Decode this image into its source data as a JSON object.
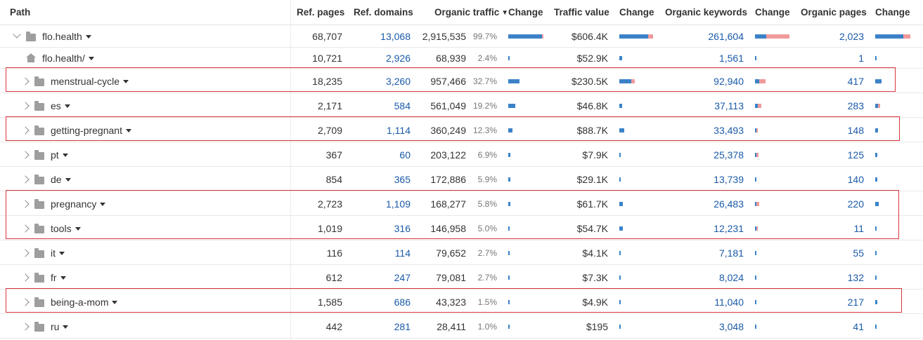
{
  "headers": {
    "path": "Path",
    "ref_pages": "Ref. pages",
    "ref_domains": "Ref. domains",
    "organic_traffic": "Organic traffic",
    "traffic_change": "Change",
    "traffic_value": "Traffic value",
    "value_change": "Change",
    "organic_keywords": "Organic keywords",
    "keywords_change": "Change",
    "organic_pages": "Organic pages",
    "pages_change": "Change"
  },
  "colors": {
    "bar_primary": "#3b82c8",
    "bar_secondary": "#f09a9a",
    "highlight": "#d9363e",
    "link": "#1a5aa8"
  },
  "rows": [
    {
      "path": "flo.health",
      "icon": "folder-icon",
      "expanded": true,
      "ref_pages": "68,707",
      "ref_domains": "13,068",
      "organic_traffic": "2,915,535",
      "traffic_pct": "99.7%",
      "traffic_value": "$606.4K",
      "organic_keywords": "261,604",
      "organic_pages": "2,023",
      "bars": {
        "traffic": [
          1.0,
          0.04
        ],
        "value": [
          0.85,
          0.15
        ],
        "keywords": [
          0.33,
          0.67
        ],
        "pages": [
          0.8,
          0.2
        ]
      }
    },
    {
      "path": "flo.health/",
      "icon": "home-icon",
      "ref_pages": "10,721",
      "ref_domains": "2,926",
      "organic_traffic": "68,939",
      "traffic_pct": "2.4%",
      "traffic_value": "$52.9K",
      "organic_keywords": "1,561",
      "organic_pages": "1",
      "bars": {
        "traffic": [
          0.04,
          0
        ],
        "value": [
          0.08,
          0
        ],
        "keywords": [
          0.04,
          0
        ],
        "pages": [
          0.04,
          0
        ]
      }
    },
    {
      "path": "menstrual-cycle",
      "icon": "folder-icon",
      "highlighted": true,
      "ref_pages": "18,235",
      "ref_domains": "3,260",
      "organic_traffic": "957,466",
      "traffic_pct": "32.7%",
      "traffic_value": "$230.5K",
      "organic_keywords": "92,940",
      "organic_pages": "417",
      "bars": {
        "traffic": [
          0.33,
          0
        ],
        "value": [
          0.36,
          0.1
        ],
        "keywords": [
          0.12,
          0.18
        ],
        "pages": [
          0.17,
          0
        ]
      }
    },
    {
      "path": "es",
      "icon": "folder-icon",
      "ref_pages": "2,171",
      "ref_domains": "584",
      "organic_traffic": "561,049",
      "traffic_pct": "19.2%",
      "traffic_value": "$46.8K",
      "organic_keywords": "37,113",
      "organic_pages": "283",
      "bars": {
        "traffic": [
          0.2,
          0
        ],
        "value": [
          0.08,
          0
        ],
        "keywords": [
          0.08,
          0.1
        ],
        "pages": [
          0.08,
          0.06
        ]
      }
    },
    {
      "path": "getting-pregnant",
      "icon": "folder-icon",
      "highlighted": true,
      "ref_pages": "2,709",
      "ref_domains": "1,114",
      "organic_traffic": "360,249",
      "traffic_pct": "12.3%",
      "traffic_value": "$88.7K",
      "organic_keywords": "33,493",
      "organic_pages": "148",
      "bars": {
        "traffic": [
          0.12,
          0
        ],
        "value": [
          0.14,
          0
        ],
        "keywords": [
          0.05,
          0.05
        ],
        "pages": [
          0.07,
          0
        ]
      }
    },
    {
      "path": "pt",
      "icon": "folder-icon",
      "ref_pages": "367",
      "ref_domains": "60",
      "organic_traffic": "203,122",
      "traffic_pct": "6.9%",
      "traffic_value": "$7.9K",
      "organic_keywords": "25,378",
      "organic_pages": "125",
      "bars": {
        "traffic": [
          0.07,
          0
        ],
        "value": [
          0.02,
          0
        ],
        "keywords": [
          0.05,
          0.06
        ],
        "pages": [
          0.06,
          0
        ]
      }
    },
    {
      "path": "de",
      "icon": "folder-icon",
      "ref_pages": "854",
      "ref_domains": "365",
      "organic_traffic": "172,886",
      "traffic_pct": "5.9%",
      "traffic_value": "$29.1K",
      "organic_keywords": "13,739",
      "organic_pages": "140",
      "bars": {
        "traffic": [
          0.06,
          0
        ],
        "value": [
          0.05,
          0
        ],
        "keywords": [
          0.04,
          0
        ],
        "pages": [
          0.06,
          0
        ]
      }
    },
    {
      "path": "pregnancy",
      "icon": "folder-icon",
      "highlighted": true,
      "ref_pages": "2,723",
      "ref_domains": "1,109",
      "organic_traffic": "168,277",
      "traffic_pct": "5.8%",
      "traffic_value": "$61.7K",
      "organic_keywords": "26,483",
      "organic_pages": "220",
      "bars": {
        "traffic": [
          0.06,
          0
        ],
        "value": [
          0.11,
          0
        ],
        "keywords": [
          0.04,
          0.08
        ],
        "pages": [
          0.09,
          0
        ]
      }
    },
    {
      "path": "tools",
      "icon": "folder-icon",
      "highlighted": true,
      "ref_pages": "1,019",
      "ref_domains": "316",
      "organic_traffic": "146,958",
      "traffic_pct": "5.0%",
      "traffic_value": "$54.7K",
      "organic_keywords": "12,231",
      "organic_pages": "11",
      "bars": {
        "traffic": [
          0.05,
          0
        ],
        "value": [
          0.1,
          0
        ],
        "keywords": [
          0.03,
          0.05
        ],
        "pages": [
          0.04,
          0
        ]
      }
    },
    {
      "path": "it",
      "icon": "folder-icon",
      "ref_pages": "116",
      "ref_domains": "114",
      "organic_traffic": "79,652",
      "traffic_pct": "2.7%",
      "traffic_value": "$4.1K",
      "organic_keywords": "7,181",
      "organic_pages": "55",
      "bars": {
        "traffic": [
          0.03,
          0
        ],
        "value": [
          0.02,
          0
        ],
        "keywords": [
          0.03,
          0
        ],
        "pages": [
          0.03,
          0
        ]
      }
    },
    {
      "path": "fr",
      "icon": "folder-icon",
      "ref_pages": "612",
      "ref_domains": "247",
      "organic_traffic": "79,081",
      "traffic_pct": "2.7%",
      "traffic_value": "$7.3K",
      "organic_keywords": "8,024",
      "organic_pages": "132",
      "bars": {
        "traffic": [
          0.03,
          0
        ],
        "value": [
          0.02,
          0
        ],
        "keywords": [
          0.03,
          0
        ],
        "pages": [
          0.04,
          0
        ]
      }
    },
    {
      "path": "being-a-mom",
      "icon": "folder-icon",
      "highlighted": true,
      "ref_pages": "1,585",
      "ref_domains": "686",
      "organic_traffic": "43,323",
      "traffic_pct": "1.5%",
      "traffic_value": "$4.9K",
      "organic_keywords": "11,040",
      "organic_pages": "217",
      "bars": {
        "traffic": [
          0.02,
          0
        ],
        "value": [
          0.02,
          0
        ],
        "keywords": [
          0.03,
          0
        ],
        "pages": [
          0.06,
          0
        ]
      }
    },
    {
      "path": "ru",
      "icon": "folder-icon",
      "ref_pages": "442",
      "ref_domains": "281",
      "organic_traffic": "28,411",
      "traffic_pct": "1.0%",
      "traffic_value": "$195",
      "organic_keywords": "3,048",
      "organic_pages": "41",
      "bars": {
        "traffic": [
          0.02,
          0
        ],
        "value": [
          0.02,
          0
        ],
        "keywords": [
          0.02,
          0
        ],
        "pages": [
          0.02,
          0
        ]
      }
    }
  ]
}
